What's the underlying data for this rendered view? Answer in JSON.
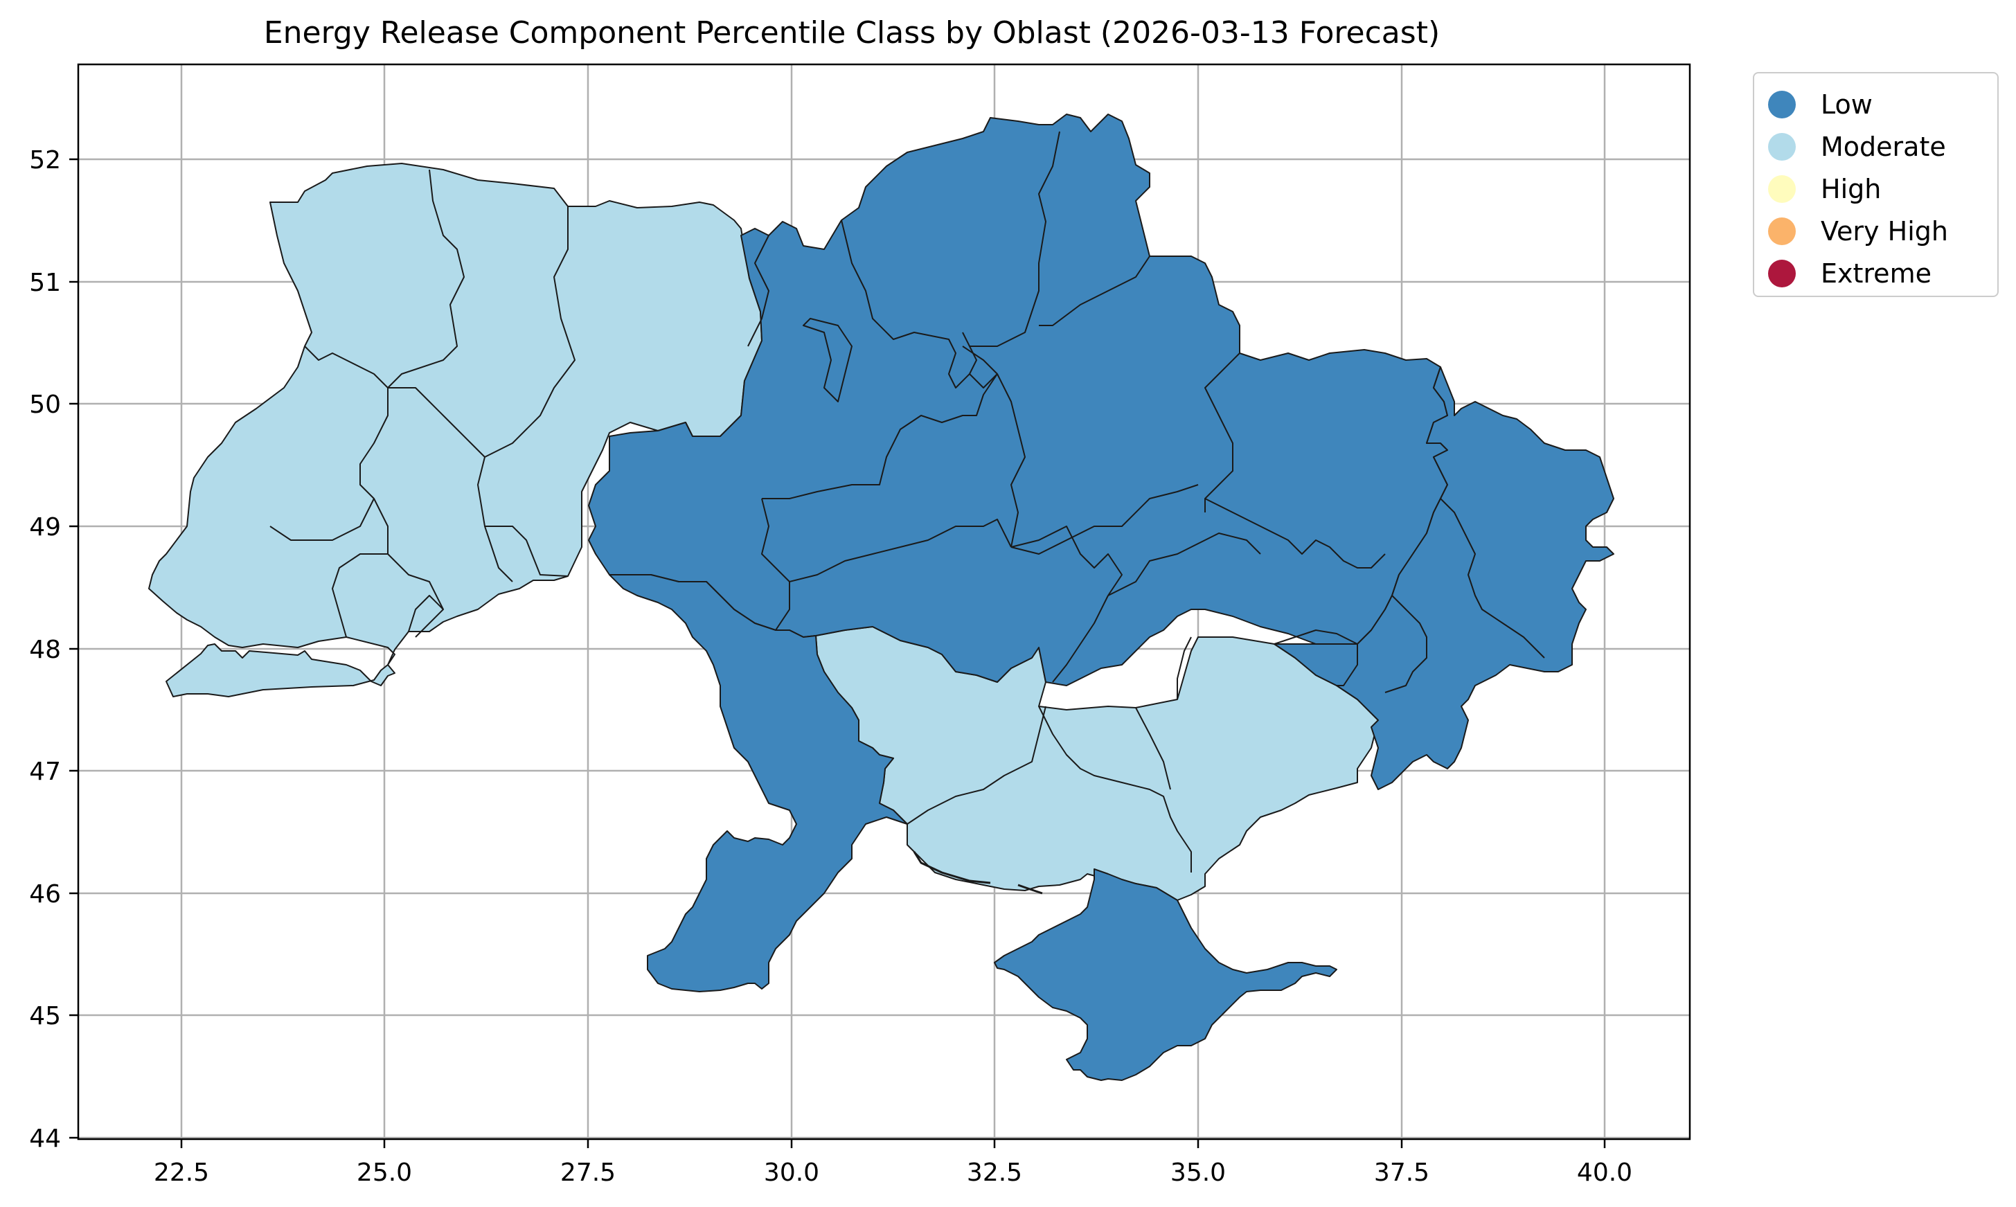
{
  "title": "Energy Release Component Percentile Class by Oblast (2026-03-13 Forecast)",
  "axes": {
    "x_ticks": [
      "22.5",
      "25.0",
      "27.5",
      "30.0",
      "32.5",
      "35.0",
      "37.5",
      "40.0"
    ],
    "y_ticks": [
      "44",
      "45",
      "46",
      "47",
      "48",
      "49",
      "50",
      "51",
      "52"
    ],
    "xlim": [
      21.25,
      41.05
    ],
    "ylim": [
      43.98,
      52.77
    ],
    "grid": true
  },
  "legend": {
    "placement": "outside-upper-right",
    "items": [
      {
        "label": "Low",
        "color": "#3f86bc"
      },
      {
        "label": "Moderate",
        "color": "#b2dbea"
      },
      {
        "label": "High",
        "color": "#fffcbd"
      },
      {
        "label": "Very High",
        "color": "#fbb36a"
      },
      {
        "label": "Extreme",
        "color": "#ad173d"
      }
    ]
  },
  "regions": {
    "west": {
      "class": "Moderate"
    },
    "south_center": {
      "class": "Moderate"
    },
    "north_center": {
      "class": "Low"
    },
    "east": {
      "class": "Low"
    },
    "south_west": {
      "class": "Low"
    },
    "crimea": {
      "class": "Low"
    }
  }
}
